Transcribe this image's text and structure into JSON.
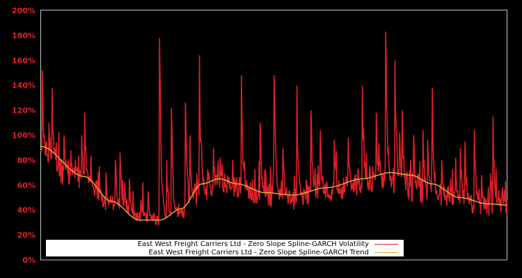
{
  "chart_data": {
    "type": "line",
    "title": "",
    "xlabel": "",
    "ylabel": "",
    "ylim": [
      0,
      200
    ],
    "y_ticks": [
      "0%",
      "20%",
      "40%",
      "60%",
      "80%",
      "100%",
      "120%",
      "140%",
      "160%",
      "180%",
      "200%"
    ],
    "x_ticks": [],
    "grid": false,
    "legend_position": "lower center",
    "x_domain_note": "normalized time 0..1 (no x tick labels shown)",
    "series": [
      {
        "name": "East West Freight Carriers Ltd - Zero Slope Spline-GARCH Volatility",
        "color": "#e0202a",
        "baseline": {
          "x": [
            0.0,
            0.03,
            0.06,
            0.1,
            0.15,
            0.2,
            0.25,
            0.3,
            0.35,
            0.4,
            0.45,
            0.5,
            0.55,
            0.6,
            0.65,
            0.7,
            0.75,
            0.8,
            0.85,
            0.9,
            0.95,
            1.0
          ],
          "values": [
            72,
            62,
            58,
            52,
            38,
            30,
            27,
            30,
            45,
            50,
            46,
            40,
            40,
            45,
            48,
            52,
            52,
            45,
            42,
            38,
            34,
            34
          ]
        },
        "spikes": {
          "x": [
            0.003,
            0.012,
            0.018,
            0.025,
            0.03,
            0.05,
            0.065,
            0.075,
            0.088,
            0.095,
            0.14,
            0.16,
            0.17,
            0.18,
            0.19,
            0.215,
            0.23,
            0.255,
            0.27,
            0.28,
            0.31,
            0.34,
            0.32,
            0.36,
            0.37,
            0.38,
            0.385,
            0.4,
            0.43,
            0.47,
            0.5,
            0.52,
            0.55,
            0.58,
            0.6,
            0.63,
            0.66,
            0.69,
            0.72,
            0.725,
            0.74,
            0.76,
            0.77,
            0.775,
            0.8,
            0.82,
            0.83,
            0.84,
            0.86,
            0.89,
            0.9,
            0.91,
            0.93,
            0.945,
            0.97,
            0.99
          ],
          "values": [
            152,
            95,
            110,
            138,
            90,
            100,
            88,
            80,
            100,
            118,
            70,
            80,
            86,
            62,
            65,
            48,
            55,
            178,
            80,
            122,
            126,
            164,
            100,
            70,
            90,
            80,
            82,
            68,
            148,
            110,
            148,
            90,
            140,
            120,
            104,
            96,
            98,
            140,
            118,
            94,
            183,
            160,
            102,
            120,
            100,
            104,
            96,
            138,
            80,
            82,
            90,
            95,
            104,
            68,
            115,
            58
          ]
        },
        "end_value": 40
      },
      {
        "name": "East West Freight Carriers Ltd - Zero Slope Spline-GARCH Trend",
        "color": "#d8b030",
        "x": [
          0.0,
          0.0925,
          0.152,
          0.2115,
          0.256,
          0.301,
          0.346,
          0.3835,
          0.4209,
          0.4806,
          0.5403,
          0.6149,
          0.6896,
          0.7493,
          0.794,
          0.8388,
          0.8985,
          0.9582,
          1.0
        ],
        "values": [
          91,
          67,
          47,
          32,
          32,
          41,
          61,
          65,
          61,
          54,
          52,
          58,
          65,
          70,
          68,
          61,
          50,
          45,
          44
        ]
      }
    ]
  },
  "legend": {
    "items": [
      {
        "label": "East West Freight Carriers Ltd - Zero Slope Spline-GARCH Volatility",
        "color": "#e0202a"
      },
      {
        "label": "East West Freight Carriers Ltd - Zero Slope Spline-GARCH Trend",
        "color": "#d8b030"
      }
    ]
  },
  "colors": {
    "background": "#000000",
    "axis_frame": "#c8c8c8",
    "tick_label": "#e0202a"
  }
}
